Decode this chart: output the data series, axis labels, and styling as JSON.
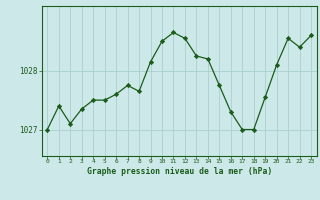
{
  "x": [
    0,
    1,
    2,
    3,
    4,
    5,
    6,
    7,
    8,
    9,
    10,
    11,
    12,
    13,
    14,
    15,
    16,
    17,
    18,
    19,
    20,
    21,
    22,
    23
  ],
  "y": [
    1027.0,
    1027.4,
    1027.1,
    1027.35,
    1027.5,
    1027.5,
    1027.6,
    1027.75,
    1027.65,
    1028.15,
    1028.5,
    1028.65,
    1028.55,
    1028.25,
    1028.2,
    1027.75,
    1027.3,
    1027.0,
    1027.0,
    1027.55,
    1028.1,
    1028.55,
    1028.4,
    1028.6
  ],
  "line_color": "#1a5c1a",
  "marker": "D",
  "marker_size": 2.2,
  "bg_color": "#cce8e8",
  "grid_color": "#aacfcf",
  "tick_label_color": "#1a5c1a",
  "xlabel": "Graphe pression niveau de la mer (hPa)",
  "xlabel_color": "#1a5c1a",
  "ylabel_ticks": [
    1027,
    1028
  ],
  "ylim": [
    1026.55,
    1029.1
  ],
  "xlim": [
    -0.5,
    23.5
  ]
}
